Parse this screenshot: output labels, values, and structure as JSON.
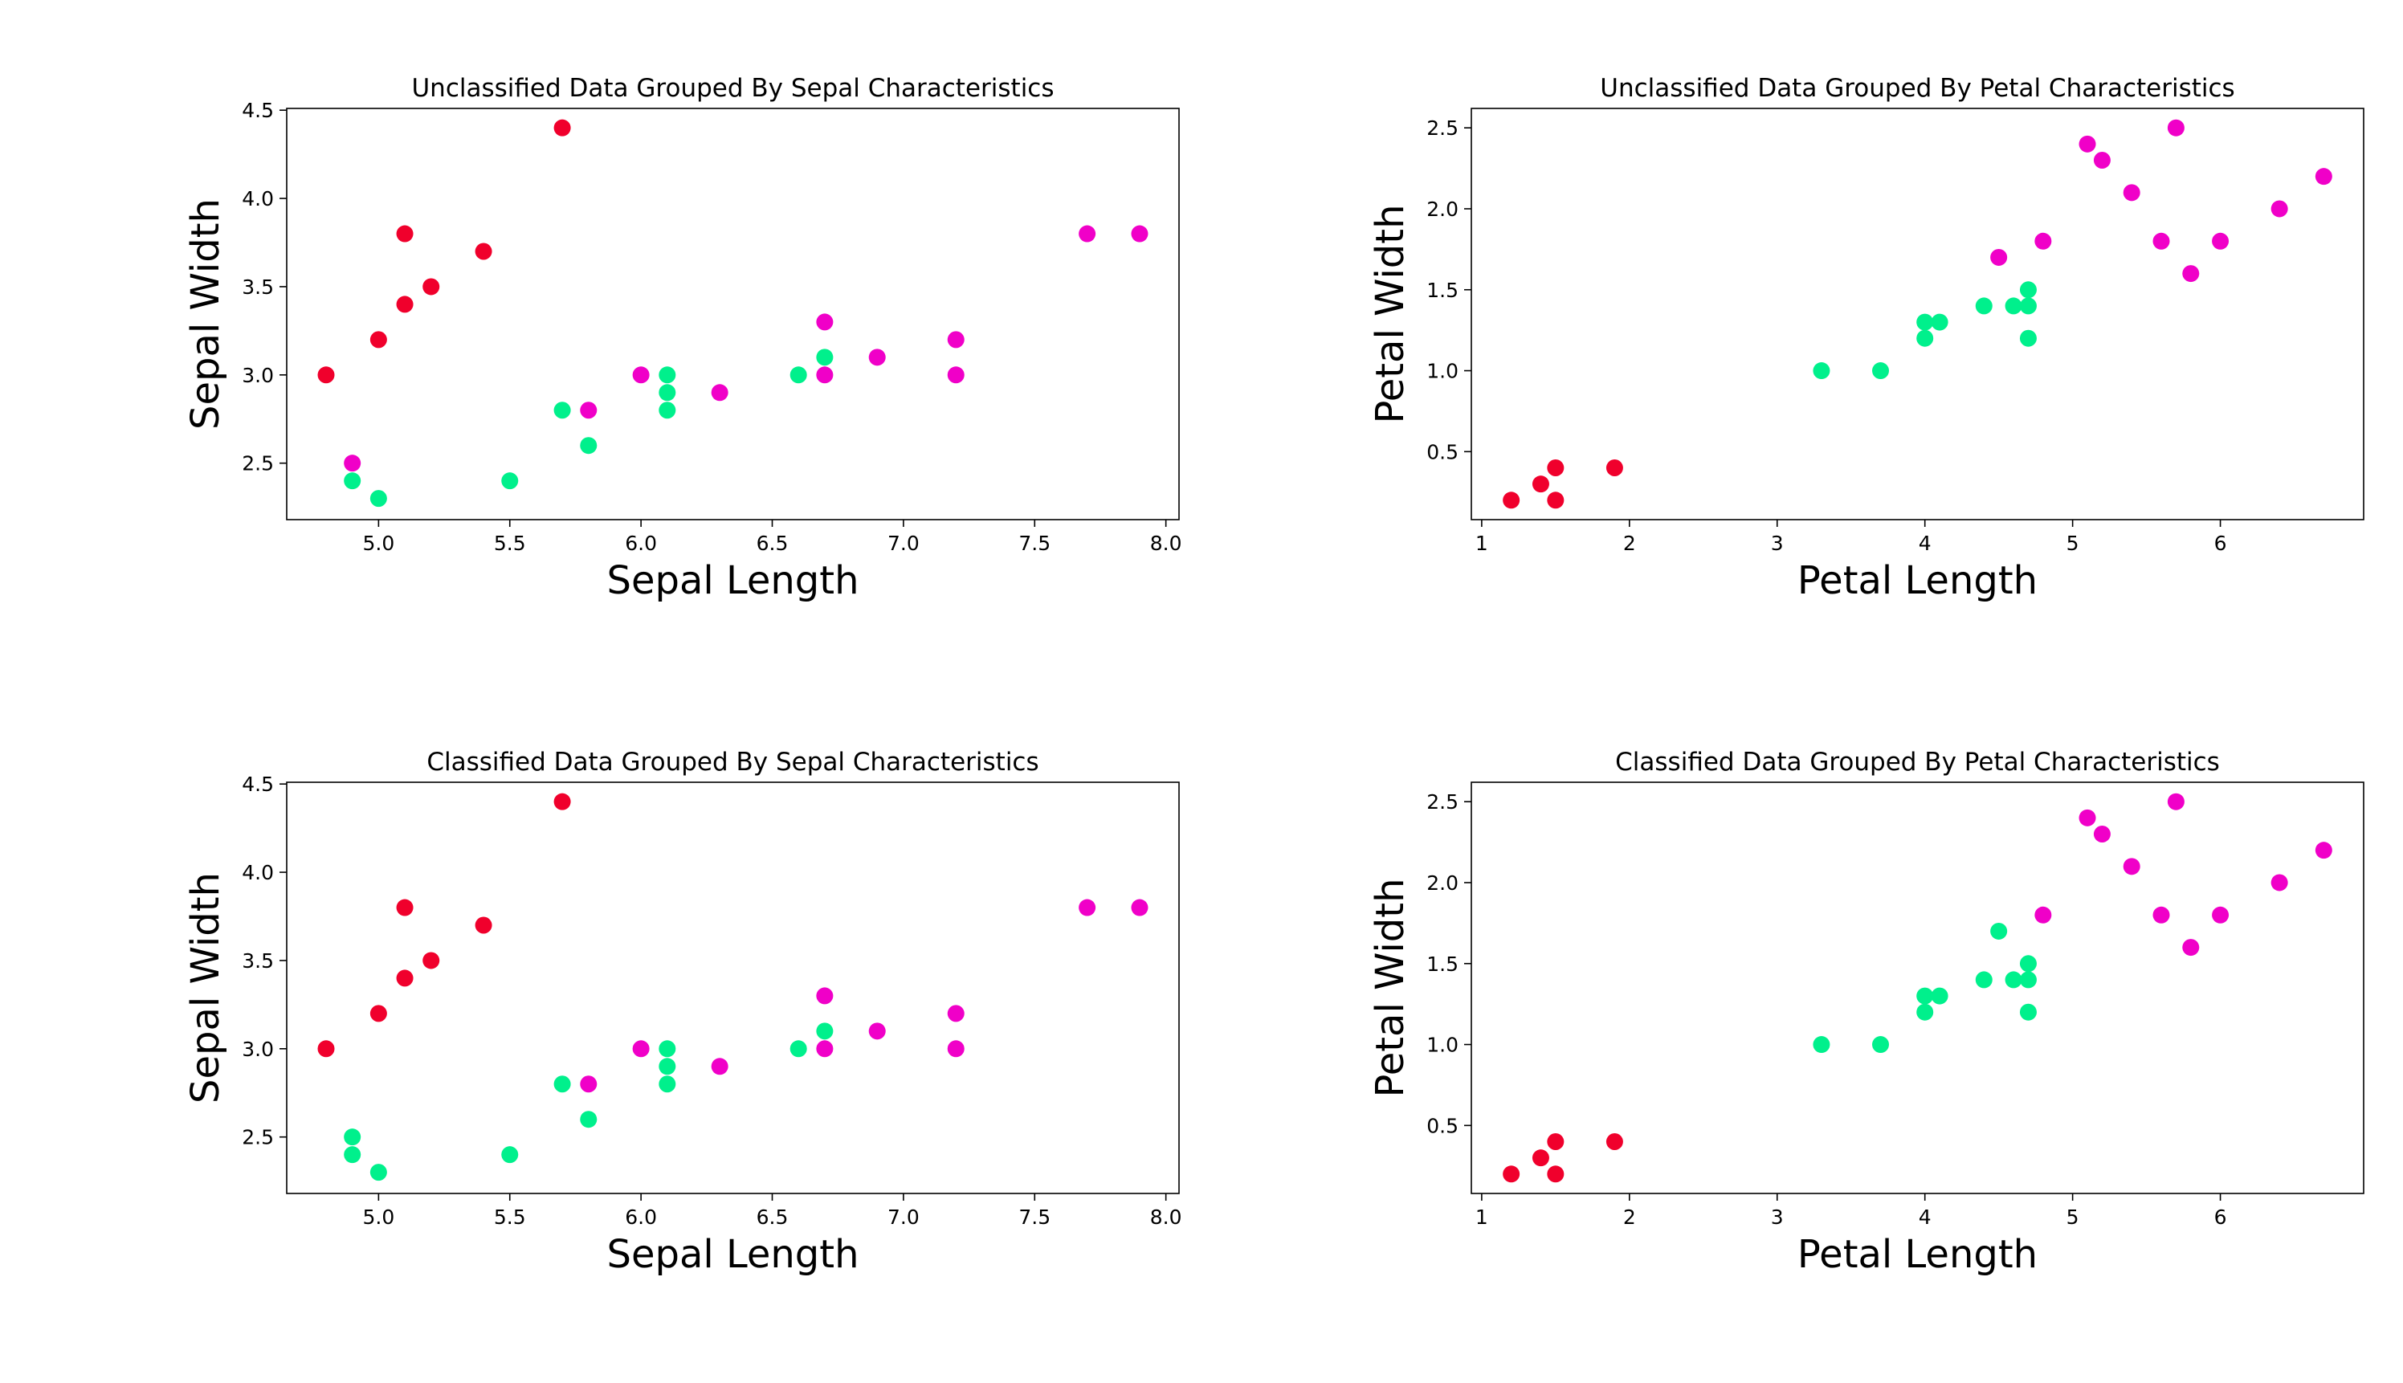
{
  "colors": {
    "setosa": "#f0002c",
    "versicolor": "#00f08c",
    "virginica": "#f000c8",
    "axes": "#000000",
    "background": "#ffffff"
  },
  "chart_data": [
    {
      "type": "scatter",
      "title": "Unclassified Data Grouped By Sepal Characteristics",
      "xlabel": "Sepal Length",
      "ylabel": "Sepal Width",
      "xlim": [
        4.65,
        8.05
      ],
      "ylim": [
        2.18,
        4.51
      ],
      "xticks": [
        5.0,
        5.5,
        6.0,
        6.5,
        7.0,
        7.5,
        8.0
      ],
      "xtick_labels": [
        "5.0",
        "5.5",
        "6.0",
        "6.5",
        "7.0",
        "7.5",
        "8.0"
      ],
      "yticks": [
        2.5,
        3.0,
        3.5,
        4.0,
        4.5
      ],
      "ytick_labels": [
        "2.5",
        "3.0",
        "3.5",
        "4.0",
        "4.5"
      ],
      "grid": false,
      "points": [
        {
          "x": 4.8,
          "y": 3.0,
          "class": "setosa"
        },
        {
          "x": 5.0,
          "y": 3.2,
          "class": "setosa"
        },
        {
          "x": 5.1,
          "y": 3.4,
          "class": "setosa"
        },
        {
          "x": 5.1,
          "y": 3.8,
          "class": "setosa"
        },
        {
          "x": 5.2,
          "y": 3.5,
          "class": "setosa"
        },
        {
          "x": 5.4,
          "y": 3.7,
          "class": "setosa"
        },
        {
          "x": 5.7,
          "y": 4.4,
          "class": "setosa"
        },
        {
          "x": 4.9,
          "y": 2.4,
          "class": "versicolor"
        },
        {
          "x": 5.0,
          "y": 2.3,
          "class": "versicolor"
        },
        {
          "x": 5.5,
          "y": 2.4,
          "class": "versicolor"
        },
        {
          "x": 5.7,
          "y": 2.8,
          "class": "versicolor"
        },
        {
          "x": 5.8,
          "y": 2.6,
          "class": "versicolor"
        },
        {
          "x": 6.1,
          "y": 3.0,
          "class": "versicolor"
        },
        {
          "x": 6.1,
          "y": 2.9,
          "class": "versicolor"
        },
        {
          "x": 6.1,
          "y": 2.8,
          "class": "versicolor"
        },
        {
          "x": 6.6,
          "y": 3.0,
          "class": "versicolor"
        },
        {
          "x": 6.7,
          "y": 3.1,
          "class": "versicolor"
        },
        {
          "x": 4.9,
          "y": 2.5,
          "class": "virginica"
        },
        {
          "x": 5.8,
          "y": 2.8,
          "class": "virginica"
        },
        {
          "x": 6.0,
          "y": 3.0,
          "class": "virginica"
        },
        {
          "x": 6.3,
          "y": 2.9,
          "class": "virginica"
        },
        {
          "x": 6.7,
          "y": 3.3,
          "class": "virginica"
        },
        {
          "x": 6.7,
          "y": 3.0,
          "class": "virginica"
        },
        {
          "x": 6.9,
          "y": 3.1,
          "class": "virginica"
        },
        {
          "x": 7.2,
          "y": 3.2,
          "class": "virginica"
        },
        {
          "x": 7.2,
          "y": 3.0,
          "class": "virginica"
        },
        {
          "x": 7.7,
          "y": 3.8,
          "class": "virginica"
        },
        {
          "x": 7.9,
          "y": 3.8,
          "class": "virginica"
        }
      ]
    },
    {
      "type": "scatter",
      "title": "Unclassified Data Grouped By Petal Characteristics",
      "xlabel": "Petal Length",
      "ylabel": "Petal Width",
      "xlim": [
        0.93,
        6.97
      ],
      "ylim": [
        0.08,
        2.62
      ],
      "xticks": [
        1,
        2,
        3,
        4,
        5,
        6
      ],
      "xtick_labels": [
        "1",
        "2",
        "3",
        "4",
        "5",
        "6"
      ],
      "yticks": [
        0.5,
        1.0,
        1.5,
        2.0,
        2.5
      ],
      "ytick_labels": [
        "0.5",
        "1.0",
        "1.5",
        "2.0",
        "2.5"
      ],
      "grid": false,
      "points": [
        {
          "x": 1.2,
          "y": 0.2,
          "class": "setosa"
        },
        {
          "x": 1.4,
          "y": 0.3,
          "class": "setosa"
        },
        {
          "x": 1.5,
          "y": 0.4,
          "class": "setosa"
        },
        {
          "x": 1.5,
          "y": 0.2,
          "class": "setosa"
        },
        {
          "x": 1.9,
          "y": 0.4,
          "class": "setosa"
        },
        {
          "x": 3.3,
          "y": 1.0,
          "class": "versicolor"
        },
        {
          "x": 3.7,
          "y": 1.0,
          "class": "versicolor"
        },
        {
          "x": 4.0,
          "y": 1.3,
          "class": "versicolor"
        },
        {
          "x": 4.0,
          "y": 1.2,
          "class": "versicolor"
        },
        {
          "x": 4.1,
          "y": 1.3,
          "class": "versicolor"
        },
        {
          "x": 4.4,
          "y": 1.4,
          "class": "versicolor"
        },
        {
          "x": 4.6,
          "y": 1.4,
          "class": "versicolor"
        },
        {
          "x": 4.7,
          "y": 1.5,
          "class": "versicolor"
        },
        {
          "x": 4.7,
          "y": 1.4,
          "class": "versicolor"
        },
        {
          "x": 4.7,
          "y": 1.2,
          "class": "versicolor"
        },
        {
          "x": 4.5,
          "y": 1.7,
          "class": "virginica"
        },
        {
          "x": 4.8,
          "y": 1.8,
          "class": "virginica"
        },
        {
          "x": 5.1,
          "y": 2.4,
          "class": "virginica"
        },
        {
          "x": 5.2,
          "y": 2.3,
          "class": "virginica"
        },
        {
          "x": 5.4,
          "y": 2.1,
          "class": "virginica"
        },
        {
          "x": 5.6,
          "y": 1.8,
          "class": "virginica"
        },
        {
          "x": 5.7,
          "y": 2.5,
          "class": "virginica"
        },
        {
          "x": 5.8,
          "y": 1.6,
          "class": "virginica"
        },
        {
          "x": 6.0,
          "y": 1.8,
          "class": "virginica"
        },
        {
          "x": 6.4,
          "y": 2.0,
          "class": "virginica"
        },
        {
          "x": 6.7,
          "y": 2.2,
          "class": "virginica"
        }
      ]
    },
    {
      "type": "scatter",
      "title": "Classified Data Grouped By Sepal Characteristics",
      "xlabel": "Sepal Length",
      "ylabel": "Sepal Width",
      "xlim": [
        4.65,
        8.05
      ],
      "ylim": [
        2.18,
        4.51
      ],
      "xticks": [
        5.0,
        5.5,
        6.0,
        6.5,
        7.0,
        7.5,
        8.0
      ],
      "xtick_labels": [
        "5.0",
        "5.5",
        "6.0",
        "6.5",
        "7.0",
        "7.5",
        "8.0"
      ],
      "yticks": [
        2.5,
        3.0,
        3.5,
        4.0,
        4.5
      ],
      "ytick_labels": [
        "2.5",
        "3.0",
        "3.5",
        "4.0",
        "4.5"
      ],
      "grid": false,
      "points": [
        {
          "x": 4.8,
          "y": 3.0,
          "class": "setosa"
        },
        {
          "x": 5.0,
          "y": 3.2,
          "class": "setosa"
        },
        {
          "x": 5.1,
          "y": 3.4,
          "class": "setosa"
        },
        {
          "x": 5.1,
          "y": 3.8,
          "class": "setosa"
        },
        {
          "x": 5.2,
          "y": 3.5,
          "class": "setosa"
        },
        {
          "x": 5.4,
          "y": 3.7,
          "class": "setosa"
        },
        {
          "x": 5.7,
          "y": 4.4,
          "class": "setosa"
        },
        {
          "x": 4.9,
          "y": 2.5,
          "class": "versicolor"
        },
        {
          "x": 4.9,
          "y": 2.4,
          "class": "versicolor"
        },
        {
          "x": 5.0,
          "y": 2.3,
          "class": "versicolor"
        },
        {
          "x": 5.5,
          "y": 2.4,
          "class": "versicolor"
        },
        {
          "x": 5.7,
          "y": 2.8,
          "class": "versicolor"
        },
        {
          "x": 5.8,
          "y": 2.6,
          "class": "versicolor"
        },
        {
          "x": 6.1,
          "y": 3.0,
          "class": "versicolor"
        },
        {
          "x": 6.1,
          "y": 2.9,
          "class": "versicolor"
        },
        {
          "x": 6.1,
          "y": 2.8,
          "class": "versicolor"
        },
        {
          "x": 6.6,
          "y": 3.0,
          "class": "versicolor"
        },
        {
          "x": 6.7,
          "y": 3.1,
          "class": "versicolor"
        },
        {
          "x": 5.8,
          "y": 2.8,
          "class": "virginica"
        },
        {
          "x": 6.0,
          "y": 3.0,
          "class": "virginica"
        },
        {
          "x": 6.3,
          "y": 2.9,
          "class": "virginica"
        },
        {
          "x": 6.7,
          "y": 3.3,
          "class": "virginica"
        },
        {
          "x": 6.7,
          "y": 3.0,
          "class": "virginica"
        },
        {
          "x": 6.9,
          "y": 3.1,
          "class": "virginica"
        },
        {
          "x": 7.2,
          "y": 3.2,
          "class": "virginica"
        },
        {
          "x": 7.2,
          "y": 3.0,
          "class": "virginica"
        },
        {
          "x": 7.7,
          "y": 3.8,
          "class": "virginica"
        },
        {
          "x": 7.9,
          "y": 3.8,
          "class": "virginica"
        }
      ]
    },
    {
      "type": "scatter",
      "title": "Classified Data Grouped By Petal Characteristics",
      "xlabel": "Petal Length",
      "ylabel": "Petal Width",
      "xlim": [
        0.93,
        6.97
      ],
      "ylim": [
        0.08,
        2.62
      ],
      "xticks": [
        1,
        2,
        3,
        4,
        5,
        6
      ],
      "xtick_labels": [
        "1",
        "2",
        "3",
        "4",
        "5",
        "6"
      ],
      "yticks": [
        0.5,
        1.0,
        1.5,
        2.0,
        2.5
      ],
      "ytick_labels": [
        "0.5",
        "1.0",
        "1.5",
        "2.0",
        "2.5"
      ],
      "grid": false,
      "points": [
        {
          "x": 1.2,
          "y": 0.2,
          "class": "setosa"
        },
        {
          "x": 1.4,
          "y": 0.3,
          "class": "setosa"
        },
        {
          "x": 1.5,
          "y": 0.4,
          "class": "setosa"
        },
        {
          "x": 1.5,
          "y": 0.2,
          "class": "setosa"
        },
        {
          "x": 1.9,
          "y": 0.4,
          "class": "setosa"
        },
        {
          "x": 3.3,
          "y": 1.0,
          "class": "versicolor"
        },
        {
          "x": 3.7,
          "y": 1.0,
          "class": "versicolor"
        },
        {
          "x": 4.0,
          "y": 1.3,
          "class": "versicolor"
        },
        {
          "x": 4.0,
          "y": 1.2,
          "class": "versicolor"
        },
        {
          "x": 4.1,
          "y": 1.3,
          "class": "versicolor"
        },
        {
          "x": 4.4,
          "y": 1.4,
          "class": "versicolor"
        },
        {
          "x": 4.5,
          "y": 1.7,
          "class": "versicolor"
        },
        {
          "x": 4.6,
          "y": 1.4,
          "class": "versicolor"
        },
        {
          "x": 4.7,
          "y": 1.5,
          "class": "versicolor"
        },
        {
          "x": 4.7,
          "y": 1.4,
          "class": "versicolor"
        },
        {
          "x": 4.7,
          "y": 1.2,
          "class": "versicolor"
        },
        {
          "x": 4.8,
          "y": 1.8,
          "class": "virginica"
        },
        {
          "x": 5.1,
          "y": 2.4,
          "class": "virginica"
        },
        {
          "x": 5.2,
          "y": 2.3,
          "class": "virginica"
        },
        {
          "x": 5.4,
          "y": 2.1,
          "class": "virginica"
        },
        {
          "x": 5.6,
          "y": 1.8,
          "class": "virginica"
        },
        {
          "x": 5.7,
          "y": 2.5,
          "class": "virginica"
        },
        {
          "x": 5.8,
          "y": 1.6,
          "class": "virginica"
        },
        {
          "x": 6.0,
          "y": 1.8,
          "class": "virginica"
        },
        {
          "x": 6.4,
          "y": 2.0,
          "class": "virginica"
        },
        {
          "x": 6.7,
          "y": 2.2,
          "class": "virginica"
        }
      ]
    }
  ]
}
